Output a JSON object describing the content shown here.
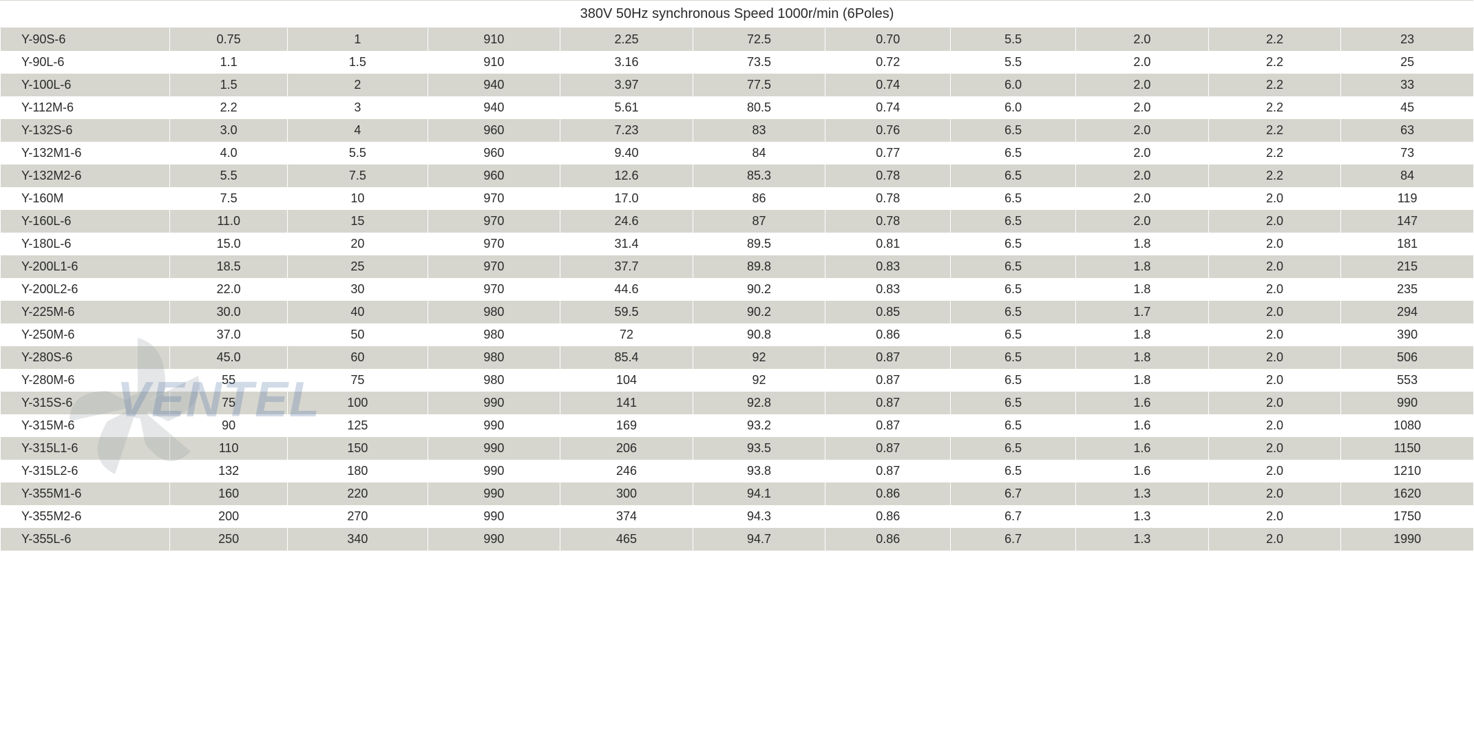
{
  "table": {
    "header_title": "380V 50Hz synchronous  Speed 1000r/min  (6Poles)",
    "header_bg": "#ffffff",
    "row_odd_bg": "#d6d6cf",
    "row_even_bg": "#ffffff",
    "text_color": "#2a2a2a",
    "fontsize": 18,
    "header_fontsize": 20,
    "num_columns": 11,
    "column_widths_pct": [
      11.5,
      8.0,
      9.5,
      9.0,
      9.0,
      9.0,
      8.5,
      8.5,
      9.0,
      9.0,
      9.0
    ],
    "first_col_align": "left",
    "other_col_align": "center",
    "rows": [
      [
        "Y-90S-6",
        "0.75",
        "1",
        "910",
        "2.25",
        "72.5",
        "0.70",
        "5.5",
        "2.0",
        "2.2",
        "23"
      ],
      [
        "Y-90L-6",
        "1.1",
        "1.5",
        "910",
        "3.16",
        "73.5",
        "0.72",
        "5.5",
        "2.0",
        "2.2",
        "25"
      ],
      [
        "Y-100L-6",
        "1.5",
        "2",
        "940",
        "3.97",
        "77.5",
        "0.74",
        "6.0",
        "2.0",
        "2.2",
        "33"
      ],
      [
        "Y-112M-6",
        "2.2",
        "3",
        "940",
        "5.61",
        "80.5",
        "0.74",
        "6.0",
        "2.0",
        "2.2",
        "45"
      ],
      [
        "Y-132S-6",
        "3.0",
        "4",
        "960",
        "7.23",
        "83",
        "0.76",
        "6.5",
        "2.0",
        "2.2",
        "63"
      ],
      [
        "Y-132M1-6",
        "4.0",
        "5.5",
        "960",
        "9.40",
        "84",
        "0.77",
        "6.5",
        "2.0",
        "2.2",
        "73"
      ],
      [
        "Y-132M2-6",
        "5.5",
        "7.5",
        "960",
        "12.6",
        "85.3",
        "0.78",
        "6.5",
        "2.0",
        "2.2",
        "84"
      ],
      [
        "Y-160M",
        "7.5",
        "10",
        "970",
        "17.0",
        "86",
        "0.78",
        "6.5",
        "2.0",
        "2.0",
        "119"
      ],
      [
        "Y-160L-6",
        "11.0",
        "15",
        "970",
        "24.6",
        "87",
        "0.78",
        "6.5",
        "2.0",
        "2.0",
        "147"
      ],
      [
        "Y-180L-6",
        "15.0",
        "20",
        "970",
        "31.4",
        "89.5",
        "0.81",
        "6.5",
        "1.8",
        "2.0",
        "181"
      ],
      [
        "Y-200L1-6",
        "18.5",
        "25",
        "970",
        "37.7",
        "89.8",
        "0.83",
        "6.5",
        "1.8",
        "2.0",
        "215"
      ],
      [
        "Y-200L2-6",
        "22.0",
        "30",
        "970",
        "44.6",
        "90.2",
        "0.83",
        "6.5",
        "1.8",
        "2.0",
        "235"
      ],
      [
        "Y-225M-6",
        "30.0",
        "40",
        "980",
        "59.5",
        "90.2",
        "0.85",
        "6.5",
        "1.7",
        "2.0",
        "294"
      ],
      [
        "Y-250M-6",
        "37.0",
        "50",
        "980",
        "72",
        "90.8",
        "0.86",
        "6.5",
        "1.8",
        "2.0",
        "390"
      ],
      [
        "Y-280S-6",
        "45.0",
        "60",
        "980",
        "85.4",
        "92",
        "0.87",
        "6.5",
        "1.8",
        "2.0",
        "506"
      ],
      [
        "Y-280M-6",
        "55",
        "75",
        "980",
        "104",
        "92",
        "0.87",
        "6.5",
        "1.8",
        "2.0",
        "553"
      ],
      [
        "Y-315S-6",
        "75",
        "100",
        "990",
        "141",
        "92.8",
        "0.87",
        "6.5",
        "1.6",
        "2.0",
        "990"
      ],
      [
        "Y-315M-6",
        "90",
        "125",
        "990",
        "169",
        "93.2",
        "0.87",
        "6.5",
        "1.6",
        "2.0",
        "1080"
      ],
      [
        "Y-315L1-6",
        "110",
        "150",
        "990",
        "206",
        "93.5",
        "0.87",
        "6.5",
        "1.6",
        "2.0",
        "1150"
      ],
      [
        "Y-315L2-6",
        "132",
        "180",
        "990",
        "246",
        "93.8",
        "0.87",
        "6.5",
        "1.6",
        "2.0",
        "1210"
      ],
      [
        "Y-355M1-6",
        "160",
        "220",
        "990",
        "300",
        "94.1",
        "0.86",
        "6.7",
        "1.3",
        "2.0",
        "1620"
      ],
      [
        "Y-355M2-6",
        "200",
        "270",
        "990",
        "374",
        "94.3",
        "0.86",
        "6.7",
        "1.3",
        "2.0",
        "1750"
      ],
      [
        "Y-355L-6",
        "250",
        "340",
        "990",
        "465",
        "94.7",
        "0.86",
        "6.7",
        "1.3",
        "2.0",
        "1990"
      ]
    ]
  },
  "watermark": {
    "text": "VENTEL",
    "text_color": "#4b6fa3",
    "fan_color": "#9aa0a6",
    "opacity": 0.25
  }
}
